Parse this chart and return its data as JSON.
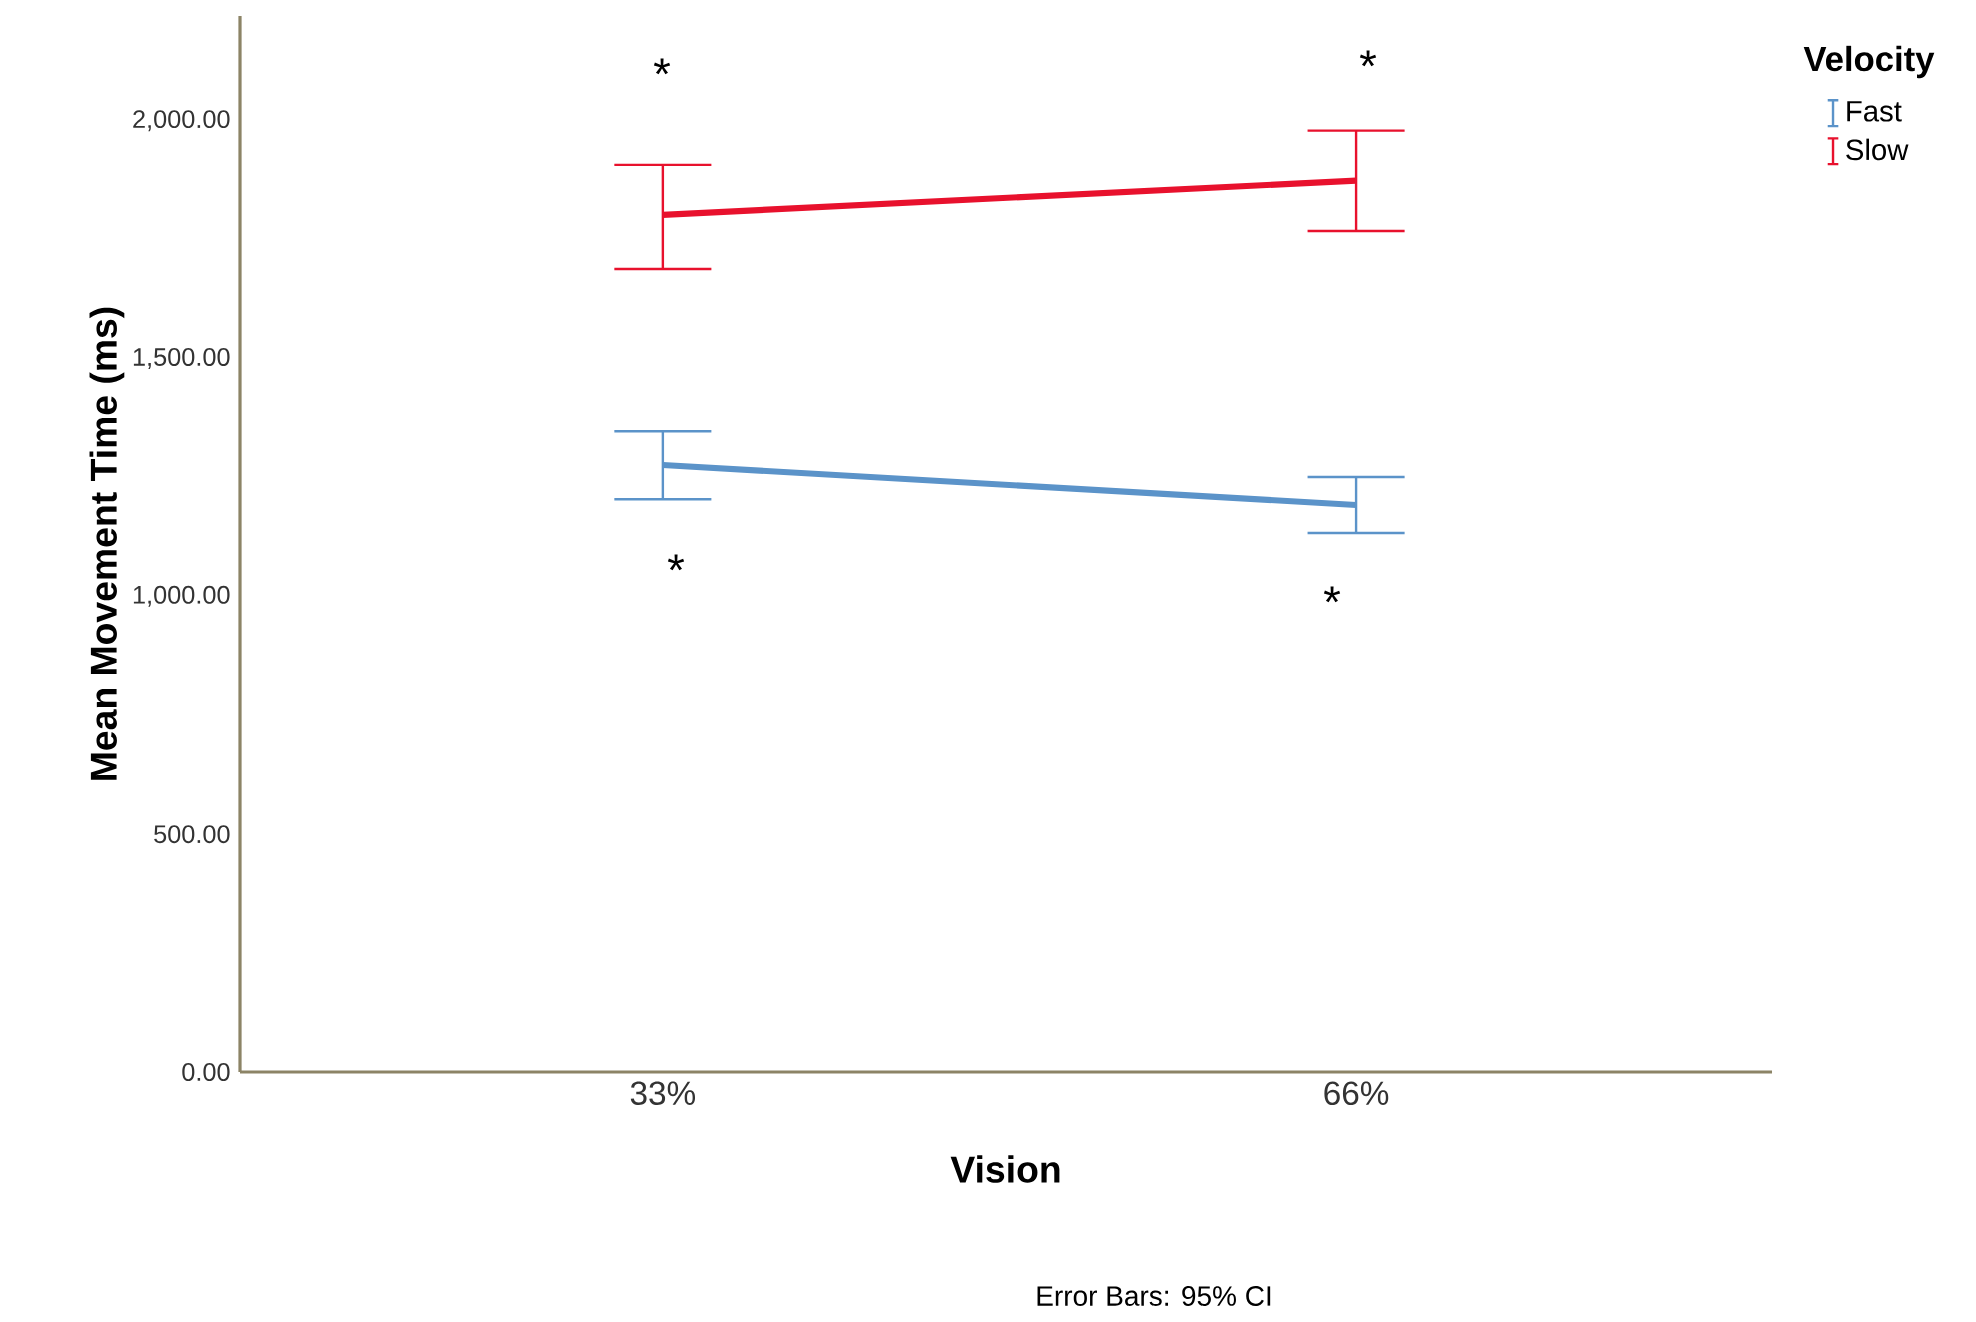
{
  "chart_data": {
    "type": "line",
    "xlabel": "Vision",
    "ylabel": "Mean Movement Time (ms)",
    "legend_title": "Velocity",
    "legend": "top right",
    "categories": [
      "33%",
      "66%"
    ],
    "ylim": [
      0,
      2220
    ],
    "yticks": [
      {
        "value": 0,
        "label": "0.00"
      },
      {
        "value": 500,
        "label": "500.00"
      },
      {
        "value": 1000,
        "label": "1,000.00"
      },
      {
        "value": 1500,
        "label": "1,500.00"
      },
      {
        "value": 2000,
        "label": "2,000.00"
      }
    ],
    "series": [
      {
        "name": "Fast",
        "color": "#5b93c9",
        "values": [
          1276,
          1192
        ],
        "errors": [
          [
            1204,
            1347
          ],
          [
            1133,
            1251
          ]
        ]
      },
      {
        "name": "Slow",
        "color": "#e8112d",
        "values": [
          1802,
          1874
        ],
        "errors": [
          [
            1688,
            1907
          ],
          [
            1768,
            1979
          ]
        ]
      }
    ],
    "marker": "none",
    "grid": false,
    "annotations": [
      "*",
      "*",
      "*",
      "*",
      "Error Bars: 95% CI"
    ]
  }
}
